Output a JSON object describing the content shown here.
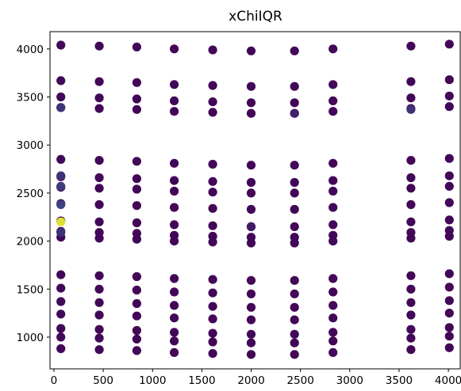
{
  "chart_data": {
    "type": "scatter",
    "title": "xChiIQR",
    "xlabel": "",
    "ylabel": "",
    "xlim": [
      -40,
      4120
    ],
    "ylim": [
      670,
      4180
    ],
    "xticks": [
      0,
      500,
      1000,
      1500,
      2000,
      2500,
      3000,
      3500,
      4000
    ],
    "yticks": [
      1000,
      1500,
      2000,
      2500,
      3000,
      3500,
      4000
    ],
    "xtick_labels": [
      "0",
      "500",
      "1000",
      "1500",
      "2000",
      "2500",
      "3000",
      "3500",
      "4000"
    ],
    "ytick_labels": [
      "1000",
      "1500",
      "2000",
      "2500",
      "3000",
      "3500",
      "4000"
    ],
    "grid": false,
    "colormap": "viridis",
    "color_scale_min": 0.0,
    "color_scale_max": 1.0,
    "columns_x": [
      70,
      460,
      840,
      1220,
      1610,
      2000,
      2440,
      2830,
      3620,
      4010
    ],
    "rows_y": [
      4020,
      3650,
      3480,
      3370,
      2830,
      2650,
      2540,
      2370,
      2190,
      2080,
      2020,
      1630,
      1490,
      1350,
      1220,
      1070,
      980,
      860
    ],
    "row_y_offsets_by_column": [
      20,
      10,
      0,
      -20,
      -30,
      -40,
      -40,
      -20,
      10,
      30
    ],
    "default_value": 0.02,
    "special_points": [
      {
        "x": 70,
        "y": 3390,
        "v": 0.15
      },
      {
        "x": 70,
        "y": 2680,
        "v": 0.15
      },
      {
        "x": 70,
        "y": 2570,
        "v": 0.18
      },
      {
        "x": 70,
        "y": 2380,
        "v": 0.2
      },
      {
        "x": 70,
        "y": 2200,
        "v": 0.95
      },
      {
        "x": 70,
        "y": 2090,
        "v": 0.15
      },
      {
        "x": 2440,
        "y": 3330,
        "v": 0.1
      },
      {
        "x": 2000,
        "y": 2150,
        "v": 0.08
      },
      {
        "x": 3620,
        "y": 3370,
        "v": 0.15
      }
    ]
  }
}
